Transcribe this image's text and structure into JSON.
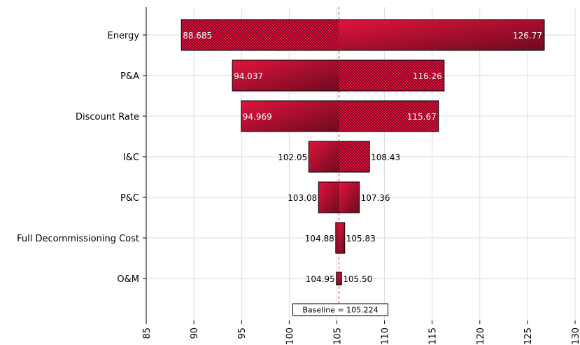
{
  "chart_data": {
    "type": "tornado",
    "title": "",
    "xlabel": "",
    "ylabel": "",
    "xlim": [
      85,
      130
    ],
    "x_ticks": [
      85,
      90,
      95,
      100,
      105,
      110,
      115,
      120,
      125,
      130
    ],
    "tick_labels": [
      "85",
      "90",
      "95",
      "100",
      "105",
      "110",
      "115",
      "120",
      "125",
      "130"
    ],
    "grid": true,
    "baseline": 105.224,
    "baseline_label": "Baseline = 105.224",
    "categories": [
      "Energy",
      "P&A",
      "Discount Rate",
      "I&C",
      "P&C",
      "Full Decommissioning Cost",
      "O&M"
    ],
    "low_values": [
      88.685,
      94.037,
      94.969,
      102.05,
      103.08,
      104.88,
      104.95
    ],
    "high_values": [
      126.77,
      116.26,
      115.67,
      108.43,
      107.36,
      105.83,
      105.5
    ],
    "low_labels": [
      "88.685",
      "94.037",
      "94.969",
      "102.05",
      "103.08",
      "104.88",
      "104.95"
    ],
    "high_labels": [
      "126.77",
      "116.26",
      "115.67",
      "108.43",
      "107.36",
      "105.83",
      "105.50"
    ],
    "left_patterned": [
      true,
      false,
      false,
      false,
      false,
      false,
      false
    ],
    "right_patterned": [
      false,
      true,
      true,
      true,
      false,
      false,
      false
    ],
    "colors": {
      "bar_light": "#e0143c",
      "bar_dark": "#6e0a1f",
      "pattern_bg": "#e8103f",
      "pattern_dot": "#2a0008",
      "grid": "#dcdcdc",
      "axis": "#000000",
      "baseline_line": "#c0392b"
    }
  }
}
